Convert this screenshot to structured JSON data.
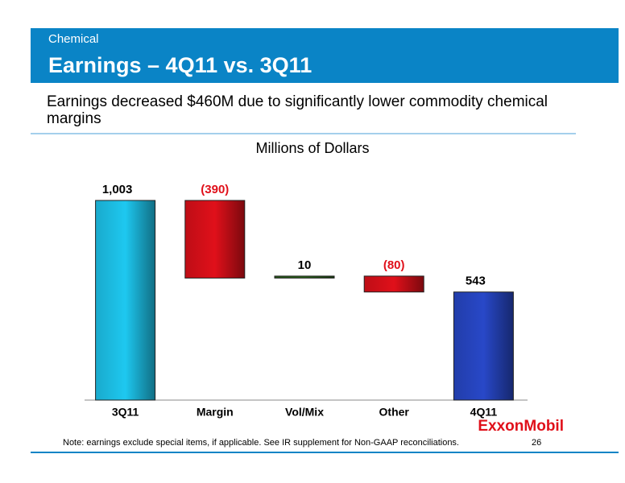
{
  "header": {
    "section": "Chemical",
    "title": "Earnings – 4Q11 vs. 3Q11"
  },
  "subtitle": "Earnings decreased $460M due to significantly lower commodity chemical margins",
  "chart_data": {
    "type": "waterfall",
    "title": "Millions of Dollars",
    "categories": [
      "3Q11",
      "Margin",
      "Vol/Mix",
      "Other",
      "4Q11"
    ],
    "values": [
      1003,
      -390,
      10,
      -80,
      543
    ],
    "value_labels": [
      "1,003",
      "(390)",
      "10",
      "(80)",
      "543"
    ],
    "totals": [
      true,
      false,
      false,
      false,
      true
    ],
    "colors": [
      "#1ec8f0",
      "#e0101a",
      "#2e6b1e",
      "#e0101a",
      "#2848c8"
    ]
  },
  "logo": "ExxonMobil",
  "footnote": "Note: earnings exclude special items, if applicable. See IR supplement for Non-GAAP reconciliations.",
  "page_number": "26"
}
